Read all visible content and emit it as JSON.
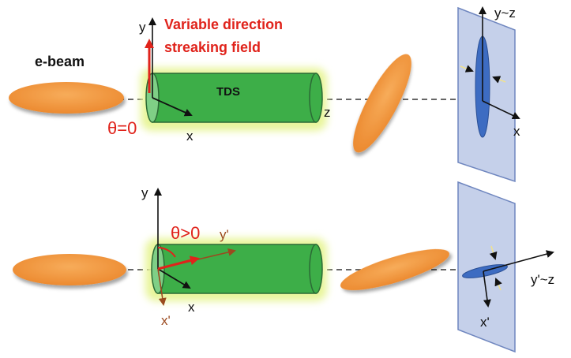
{
  "labels": {
    "ebeam": "e-beam",
    "title_line1": "Variable direction",
    "title_line2": "streaking field",
    "tds": "TDS",
    "theta_zero": "θ=0",
    "theta_pos": "θ>0",
    "axis_y": "y",
    "axis_x": "x",
    "axis_z": "z",
    "axis_y_z": "y~z",
    "axis_yprime": "y'",
    "axis_xprime": "x'",
    "axis_yprime_z": "y'~z",
    "axis_xprime_screen": "x'"
  },
  "colors": {
    "bunch": "#f0913a",
    "bunch_edge": "#c96f22",
    "cavity": "#3dae48",
    "cavity_glow": "#eaf7a0",
    "screen": "#c5d0ea",
    "screen_edge": "#6f86bf",
    "spot": "#3d6cc2",
    "field_arrow": "#e0231b",
    "prime_axis": "#9b4a1f"
  }
}
